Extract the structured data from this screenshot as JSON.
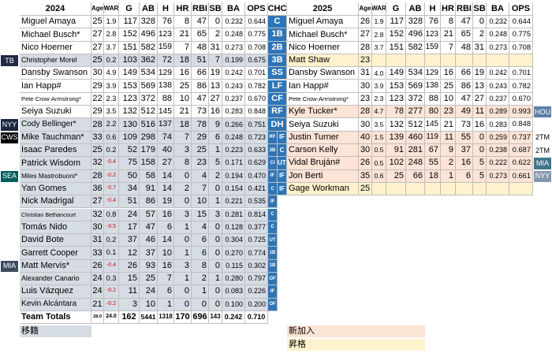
{
  "header": {
    "left_year": "2024",
    "team": "CHC",
    "right_year": "2025",
    "columns": [
      "Age",
      "WAR",
      "G",
      "AB",
      "H",
      "HR",
      "RBI",
      "SB",
      "BA",
      "OPS"
    ]
  },
  "positions": [
    "C",
    "1B",
    "2B",
    "3B",
    "SS",
    "LF",
    "CF",
    "RF",
    "DH"
  ],
  "left_rows": [
    {
      "name": "Miguel Amaya",
      "stats": [
        "25",
        "1.9",
        "117",
        "328",
        "76",
        "8",
        "47",
        "0",
        "0.232",
        "0.644"
      ],
      "color": "#ffffff"
    },
    {
      "name": "Michael Busch*",
      "stats": [
        "27",
        "2.8",
        "152",
        "496",
        "123",
        "21",
        "65",
        "2",
        "0.248",
        "0.775"
      ],
      "color": "#ffffff"
    },
    {
      "name": "Nico Hoerner",
      "stats": [
        "27",
        "3.7",
        "151",
        "582",
        "159",
        "7",
        "48",
        "31",
        "0.273",
        "0.708"
      ],
      "color": "#ffffff"
    },
    {
      "name": "Christopher Morel",
      "stats": [
        "25",
        "0.2",
        "103",
        "362",
        "72",
        "18",
        "51",
        "7",
        "0.199",
        "0.675"
      ],
      "color": "#d6dce4",
      "tag": "TB",
      "tag_color": "#1f2a44"
    },
    {
      "name": "Dansby Swanson",
      "stats": [
        "30",
        "4.9",
        "149",
        "534",
        "129",
        "16",
        "66",
        "19",
        "0.242",
        "0.701"
      ],
      "color": "#ffffff"
    },
    {
      "name": "Ian Happ#",
      "stats": [
        "29",
        "3.9",
        "153",
        "569",
        "138",
        "25",
        "86",
        "13",
        "0.243",
        "0.782"
      ],
      "color": "#ffffff"
    },
    {
      "name": "Pete Crow-Armstrong*",
      "stats": [
        "22",
        "2.3",
        "123",
        "372",
        "88",
        "10",
        "47",
        "27",
        "0.237",
        "0.670"
      ],
      "color": "#ffffff"
    },
    {
      "name": "Seiya Suzuki",
      "stats": [
        "29",
        "3.5",
        "132",
        "512",
        "145",
        "21",
        "73",
        "16",
        "0.283",
        "0.848"
      ],
      "color": "#ffffff"
    },
    {
      "name": "Cody Bellinger*",
      "stats": [
        "28",
        "2.2",
        "130",
        "516",
        "137",
        "18",
        "78",
        "9",
        "0.266",
        "0.751"
      ],
      "color": "#d6dce4",
      "tag": "NYY",
      "tag_color": "#1c2841"
    },
    {
      "name": "Mike Tauchman*",
      "stats": [
        "33",
        "0.6",
        "109",
        "298",
        "74",
        "7",
        "29",
        "6",
        "0.248",
        "0.723"
      ],
      "color": "#d6dce4",
      "pos": "RF",
      "tag": "CWS",
      "tag_color": "#000000"
    },
    {
      "name": "Isaac Paredes",
      "stats": [
        "25",
        "0.2",
        "52",
        "179",
        "40",
        "3",
        "25",
        "1",
        "0.223",
        "0.633"
      ],
      "color": "#d6dce4",
      "pos": "3B"
    },
    {
      "name": "Patrick Wisdom",
      "stats": [
        "32",
        "-0.4",
        "75",
        "158",
        "27",
        "8",
        "23",
        "5",
        "0.171",
        "0.629"
      ],
      "color": "#d6dce4",
      "pos": "CI"
    },
    {
      "name": "Miles Mastrobuoni*",
      "stats": [
        "28",
        "-0.2",
        "50",
        "58",
        "14",
        "0",
        "4",
        "2",
        "0.194",
        "0.470"
      ],
      "color": "#d6dce4",
      "pos": "IF",
      "tag": "SEA",
      "tag_color": "#005c5c"
    },
    {
      "name": "Yan Gomes",
      "stats": [
        "36",
        "-0.7",
        "34",
        "91",
        "14",
        "2",
        "7",
        "0",
        "0.154",
        "0.421"
      ],
      "color": "#d6dce4",
      "pos": "C"
    },
    {
      "name": "Nick Madrigal",
      "stats": [
        "27",
        "-0.4",
        "51",
        "86",
        "19",
        "0",
        "10",
        "1",
        "0.221",
        "0.535"
      ],
      "color": "#d6dce4",
      "pos": "IF"
    },
    {
      "name": "Christian Bethancourt",
      "stats": [
        "32",
        "0.8",
        "24",
        "57",
        "16",
        "3",
        "15",
        "3",
        "0.281",
        "0.814"
      ],
      "color": "#d6dce4",
      "pos": "C"
    },
    {
      "name": "Tomás Nido",
      "stats": [
        "30",
        "-0.5",
        "17",
        "47",
        "6",
        "1",
        "4",
        "0",
        "0.128",
        "0.377"
      ],
      "color": "#d6dce4",
      "pos": "C"
    },
    {
      "name": "David Bote",
      "stats": [
        "31",
        "0.2",
        "37",
        "46",
        "14",
        "0",
        "6",
        "0",
        "0.304",
        "0.725"
      ],
      "color": "#d6dce4",
      "pos": "UT"
    },
    {
      "name": "Garrett Cooper",
      "stats": [
        "33",
        "0.1",
        "12",
        "37",
        "10",
        "1",
        "6",
        "0",
        "0.270",
        "0.774"
      ],
      "color": "#d6dce4",
      "pos": "1B"
    },
    {
      "name": "Matt Mervis*",
      "stats": [
        "26",
        "-0.4",
        "26",
        "93",
        "16",
        "3",
        "8",
        "0",
        "0.115",
        "0.302"
      ],
      "color": "#d6dce4",
      "pos": "1B",
      "tag": "MIA",
      "tag_color": "#3b4a5c"
    },
    {
      "name": "Alexander Canario",
      "stats": [
        "24",
        "0.3",
        "15",
        "25",
        "7",
        "1",
        "2",
        "1",
        "0.280",
        "0.797"
      ],
      "color": "#d6dce4",
      "pos": "OF"
    },
    {
      "name": "Luis Vázquez",
      "stats": [
        "24",
        "-0.2",
        "11",
        "24",
        "6",
        "0",
        "1",
        "0",
        "0.083",
        "0.226"
      ],
      "color": "#d6dce4",
      "pos": "IF"
    },
    {
      "name": "Kevin Alcántara",
      "stats": [
        "21",
        "-0.2",
        "3",
        "10",
        "1",
        "0",
        "0",
        "0",
        "0.100",
        "0.200"
      ],
      "color": "#d6dce4",
      "pos": "OF"
    }
  ],
  "totals": {
    "label": "Team Totals",
    "stats": [
      "28.0",
      "24.0",
      "162",
      "5441",
      "1318",
      "170",
      "696",
      "143",
      "0.242",
      "0.710"
    ]
  },
  "right_rows": [
    {
      "name": "Miguel Amaya",
      "stats": [
        "26",
        "1.9",
        "117",
        "328",
        "76",
        "8",
        "47",
        "0",
        "0.232",
        "0.644"
      ],
      "color": "#ffffff"
    },
    {
      "name": "Michael Busch*",
      "stats": [
        "27",
        "2.8",
        "152",
        "496",
        "123",
        "21",
        "65",
        "2",
        "0.248",
        "0.775"
      ],
      "color": "#ffffff"
    },
    {
      "name": "Nico Hoerner",
      "stats": [
        "28",
        "3.7",
        "151",
        "582",
        "159",
        "7",
        "48",
        "31",
        "0.273",
        "0.708"
      ],
      "color": "#ffffff"
    },
    {
      "name": "Matt Shaw",
      "stats": [
        "23"
      ],
      "color": "#fff2cc"
    },
    {
      "name": "Dansby Swanson",
      "stats": [
        "31",
        "4.0",
        "149",
        "534",
        "129",
        "16",
        "66",
        "19",
        "0.242",
        "0.701"
      ],
      "color": "#ffffff"
    },
    {
      "name": "Ian Happ#",
      "stats": [
        "30",
        "3.9",
        "153",
        "569",
        "138",
        "25",
        "86",
        "13",
        "0.243",
        "0.782"
      ],
      "color": "#ffffff"
    },
    {
      "name": "Pete Crow-Armstrong*",
      "stats": [
        "23",
        "2.3",
        "123",
        "372",
        "88",
        "10",
        "47",
        "27",
        "0.237",
        "0.670"
      ],
      "color": "#ffffff"
    },
    {
      "name": "Kyle Tucker*",
      "stats": [
        "28",
        "4.7",
        "78",
        "277",
        "80",
        "23",
        "49",
        "11",
        "0.289",
        "0.993"
      ],
      "color": "#fce4d6",
      "tag": "HOU",
      "tag_color": "#5b7fa6"
    },
    {
      "name": "Seiya Suzuki",
      "stats": [
        "30",
        "3.5",
        "132",
        "512",
        "145",
        "21",
        "73",
        "16",
        "0.283",
        "0.848"
      ],
      "color": "#ffffff"
    },
    {
      "name": "Justin Turner",
      "stats": [
        "40",
        "1.5",
        "139",
        "460",
        "119",
        "11",
        "55",
        "0",
        "0.259",
        "0.737"
      ],
      "color": "#fce4d6",
      "pos": "IF",
      "tag": "2TM"
    },
    {
      "name": "Carson Kelly",
      "stats": [
        "30",
        "0.5",
        "91",
        "281",
        "67",
        "9",
        "37",
        "0",
        "0.238",
        "0.687"
      ],
      "color": "#fce4d6",
      "pos": "C",
      "tag": "2TM"
    },
    {
      "name": "Vidal Bruján#",
      "stats": [
        "26",
        "0.5",
        "102",
        "248",
        "55",
        "2",
        "16",
        "5",
        "0.222",
        "0.622"
      ],
      "color": "#fce4d6",
      "pos": "UT",
      "tag": "MIA",
      "tag_color": "#41748d"
    },
    {
      "name": "Jon Berti",
      "stats": [
        "35",
        "0.6",
        "25",
        "66",
        "18",
        "1",
        "6",
        "5",
        "0.273",
        "0.661"
      ],
      "color": "#fce4d6",
      "pos": "IF",
      "tag": "NYY",
      "tag_color": "#8497b0"
    },
    {
      "name": "Gage Workman",
      "stats": [
        "25"
      ],
      "color": "#fff2cc",
      "pos": "IF"
    }
  ],
  "legend_left": [
    {
      "label": "移籍",
      "color": "#d6dce4"
    }
  ],
  "legend_right": [
    {
      "label": "新加入",
      "color": "#fce4d6"
    },
    {
      "label": "昇格",
      "color": "#fff2cc"
    }
  ]
}
